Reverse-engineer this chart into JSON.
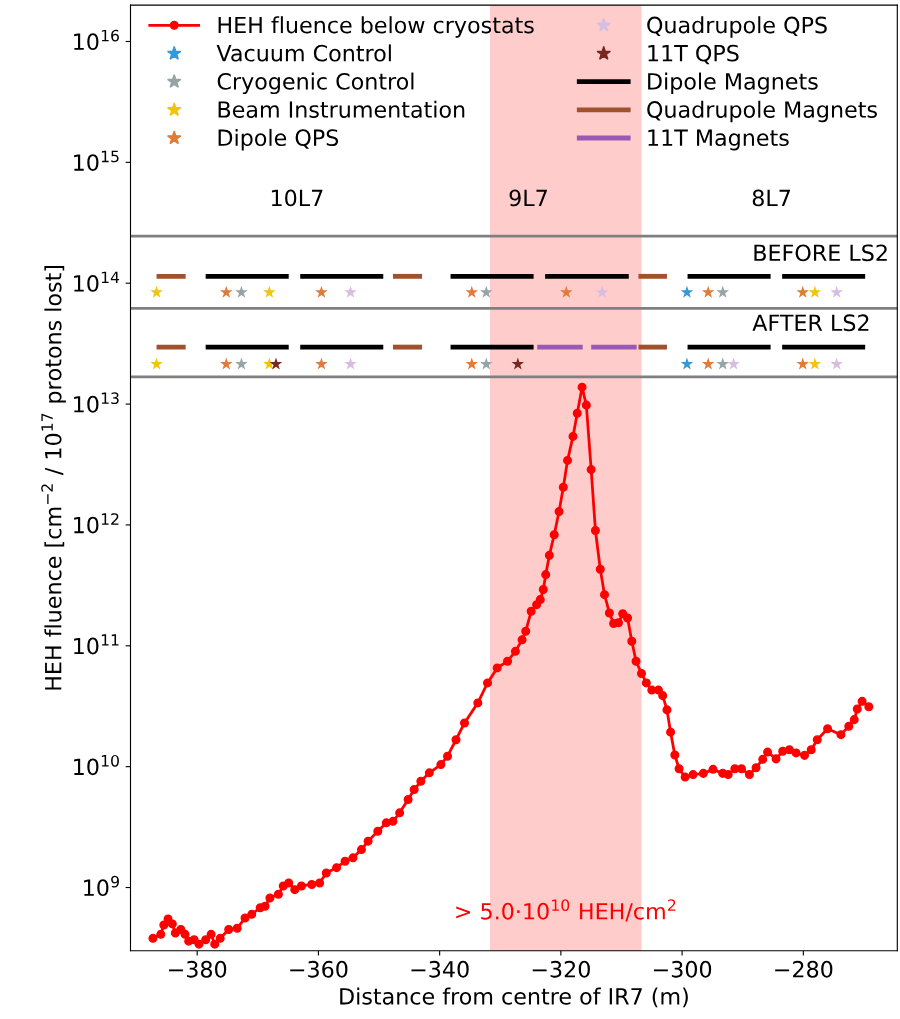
{
  "chart_data": {
    "type": "line",
    "xlabel": "Distance from centre of IR7 (m)",
    "ylabel": "HEH fluence [cm$^{−2}$ / 10$^{17}$ protons lost]",
    "log": true,
    "legend": "top",
    "xlim": [
      -391,
      -264.5
    ],
    "ylim": [
      300000000.0,
      2e+16
    ],
    "xticks": [
      {
        "value": -380,
        "label": "−380"
      },
      {
        "value": -360,
        "label": "−360"
      },
      {
        "value": -340,
        "label": "−340"
      },
      {
        "value": -320,
        "label": "−320"
      },
      {
        "value": -300,
        "label": "−300"
      },
      {
        "value": -280,
        "label": "−280"
      }
    ],
    "yticks": [
      {
        "value": 1000000000.0,
        "label": "10$^{9}$"
      },
      {
        "value": 10000000000.0,
        "label": "10$^{10}$"
      },
      {
        "value": 100000000000.0,
        "label": "10$^{11}$"
      },
      {
        "value": 1000000000000.0,
        "label": "10$^{12}$"
      },
      {
        "value": 10000000000000.0,
        "label": "10$^{13}$"
      },
      {
        "value": 100000000000000.0,
        "label": "10$^{14}$"
      },
      {
        "value": 1000000000000000.0,
        "label": "10$^{15}$"
      },
      {
        "value": 1e+16,
        "label": "10$^{16}$"
      }
    ],
    "series": [
      {
        "name": "HEH fluence below cryostats",
        "marker": "circle",
        "color": "#ff0000",
        "x": [
          -387.3,
          -386.0,
          -385.5,
          -384.8,
          -384.1,
          -383.6,
          -382.7,
          -382.0,
          -381.4,
          -380.5,
          -379.7,
          -378.6,
          -377.7,
          -377.1,
          -376.2,
          -374.8,
          -373.4,
          -372.1,
          -371.0,
          -369.6,
          -368.8,
          -368.0,
          -366.6,
          -365.8,
          -364.9,
          -363.9,
          -362.8,
          -361.1,
          -359.8,
          -358.7,
          -357.0,
          -355.6,
          -354.3,
          -352.9,
          -351.8,
          -350.2,
          -348.8,
          -347.7,
          -346.6,
          -345.2,
          -344.2,
          -343.1,
          -341.7,
          -339.8,
          -338.7,
          -337.3,
          -335.9,
          -333.7,
          -332.1,
          -330.5,
          -328.8,
          -327.5,
          -326.4,
          -325.8,
          -324.9,
          -324.0,
          -323.4,
          -322.9,
          -322.5,
          -321.9,
          -321.1,
          -320.3,
          -319.6,
          -318.9,
          -318.0,
          -317.3,
          -316.5,
          -315.8,
          -315.0,
          -314.3,
          -313.5,
          -312.8,
          -312.0,
          -311.3,
          -310.5,
          -309.8,
          -309.0,
          -308.3,
          -307.6,
          -306.7,
          -305.9,
          -305.0,
          -303.9,
          -303.2,
          -302.5,
          -301.9,
          -301.2,
          -300.5,
          -299.5,
          -298.2,
          -296.5,
          -294.9,
          -293.3,
          -292.4,
          -291.3,
          -290.2,
          -288.9,
          -287.8,
          -286.7,
          -285.9,
          -284.5,
          -283.4,
          -282.3,
          -281.2,
          -279.8,
          -278.7,
          -277.7,
          -276.0,
          -273.8,
          -272.5,
          -271.6,
          -271.1,
          -270.3,
          -269.2
        ],
        "values": [
          380000000.0,
          410000000.0,
          490000000.0,
          550000000.0,
          500000000.0,
          420000000.0,
          450000000.0,
          410000000.0,
          360000000.0,
          370000000.0,
          340000000.0,
          370000000.0,
          410000000.0,
          340000000.0,
          380000000.0,
          450000000.0,
          460000000.0,
          560000000.0,
          600000000.0,
          680000000.0,
          700000000.0,
          820000000.0,
          880000000.0,
          1030000000.0,
          1090000000.0,
          960000000.0,
          1030000000.0,
          1060000000.0,
          1090000000.0,
          1320000000.0,
          1460000000.0,
          1650000000.0,
          1760000000.0,
          2060000000.0,
          2420000000.0,
          2920000000.0,
          3430000000.0,
          3530000000.0,
          4150000000.0,
          5350000000.0,
          6470000000.0,
          7570000000.0,
          8890000000.0,
          10400000000.0,
          12200000000.0,
          16700000000.0,
          23000000000.0,
          33700000000.0,
          49300000000.0,
          65600000000.0,
          74500000000.0,
          90000000000.0,
          112000000000.0,
          132000000000.0,
          193000000000.0,
          219000000000.0,
          241000000000.0,
          292000000000.0,
          388000000000.0,
          560000000000.0,
          830000000000.0,
          1290000000000.0,
          2050000000000.0,
          3420000000000.0,
          5400000000000.0,
          8400000000000.0,
          13800000000000.0,
          9800000000000.0,
          2870000000000.0,
          900000000000.0,
          430000000000.0,
          265000000000.0,
          187000000000.0,
          153000000000.0,
          155000000000.0,
          184000000000.0,
          170000000000.0,
          109000000000.0,
          74500000000.0,
          59000000000.0,
          49300000000.0,
          43000000000.0,
          43000000000.0,
          38700000000.0,
          29500000000.0,
          19300000000.0,
          12500000000.0,
          9600000000.0,
          8200000000.0,
          8600000000.0,
          8800000000.0,
          9500000000.0,
          8800000000.0,
          8600000000.0,
          9600000000.0,
          9600000000.0,
          8600000000.0,
          9800000000.0,
          11500000000.0,
          13200000000.0,
          11600000000.0,
          13400000000.0,
          13800000000.0,
          13000000000.0,
          12400000000.0,
          13800000000.0,
          16700000000.0,
          20600000000.0,
          18400000000.0,
          21600000000.0,
          24500000000.0,
          30000000000.0,
          34700000000.0,
          31300000000.0
        ]
      },
      {
        "name": "Vacuum Control",
        "type": "scatter",
        "marker": "star",
        "color": "#3498db",
        "x": [
          -299.2,
          -299.2
        ],
        "values": [
          84000000000000.0,
          21400000000000.0
        ]
      },
      {
        "name": "Cryogenic Control",
        "type": "scatter",
        "marker": "star",
        "color": "#95a5a6",
        "x": [
          -372.7,
          -332.3,
          -293.3,
          -372.7,
          -332.3,
          -293.3
        ],
        "values": [
          84000000000000.0,
          84000000000000.0,
          84000000000000.0,
          21400000000000.0,
          21400000000000.0,
          21400000000000.0
        ]
      },
      {
        "name": "Beam Instrumentation",
        "type": "scatter",
        "marker": "star",
        "color": "#f1c40f",
        "x": [
          -386.7,
          -368.1,
          -278.1,
          -386.7,
          -368.1,
          -278.1
        ],
        "values": [
          84000000000000.0,
          84000000000000.0,
          84000000000000.0,
          21400000000000.0,
          21400000000000.0,
          21400000000000.0
        ]
      },
      {
        "name": "Dipole QPS",
        "type": "scatter",
        "marker": "star",
        "color": "#e07b39",
        "x": [
          -375.2,
          -359.5,
          -334.7,
          -319.1,
          -295.7,
          -280.1,
          -375.2,
          -359.5,
          -334.7,
          -295.7,
          -280.1
        ],
        "values": [
          84000000000000.0,
          84000000000000.0,
          84000000000000.0,
          84000000000000.0,
          84000000000000.0,
          84000000000000.0,
          21400000000000.0,
          21400000000000.0,
          21400000000000.0,
          21400000000000.0,
          21400000000000.0
        ]
      },
      {
        "name": "Quadrupole QPS",
        "type": "scatter",
        "marker": "star",
        "color": "#d7bde2",
        "x": [
          -354.7,
          -313.2,
          -274.5,
          -354.7,
          -291.5,
          -274.5
        ],
        "values": [
          84000000000000.0,
          84000000000000.0,
          84000000000000.0,
          21400000000000.0,
          21400000000000.0,
          21400000000000.0
        ]
      },
      {
        "name": "11T QPS",
        "type": "scatter",
        "marker": "star",
        "color": "#78281f",
        "x": [
          -367.0,
          -327.1
        ],
        "values": [
          21400000000000.0,
          21400000000000.0
        ]
      },
      {
        "name": "Dipole Magnets",
        "marker": "none",
        "color": "#000000",
        "x": [
          -378.2,
          -365.3
        ],
        "values": [
          114000000000000.0,
          114000000000000.0
        ]
      },
      {
        "name": "Quadrupole Magnets",
        "marker": "none",
        "color": "#a0522d",
        "x": [
          -386.3,
          -382.3
        ],
        "values": [
          114000000000000.0,
          114000000000000.0
        ]
      },
      {
        "name": "11T Magnets",
        "marker": "none",
        "color": "#9b59b6",
        "x": [
          -323.5,
          -316.8
        ],
        "values": [
          29600000000000.0,
          29600000000000.0
        ]
      },
      {
        "marker": "none",
        "color": "#9b59b6",
        "x": [
          -314.6,
          -307.9
        ],
        "values": [
          29600000000000.0,
          29600000000000.0
        ]
      },
      {
        "marker": "none",
        "color": "#000000",
        "x": [
          -362.6,
          -349.7
        ],
        "values": [
          114000000000000.0,
          114000000000000.0
        ]
      },
      {
        "marker": "none",
        "color": "#000000",
        "x": [
          -337.8,
          -324.9
        ],
        "values": [
          114000000000000.0,
          114000000000000.0
        ]
      },
      {
        "marker": "none",
        "color": "#000000",
        "x": [
          -322.2,
          -309.2
        ],
        "values": [
          114000000000000.0,
          114000000000000.0
        ]
      },
      {
        "marker": "none",
        "color": "#000000",
        "x": [
          -298.7,
          -285.8
        ],
        "values": [
          114000000000000.0,
          114000000000000.0
        ]
      },
      {
        "marker": "none",
        "color": "#000000",
        "x": [
          -283.1,
          -270.2
        ],
        "values": [
          114000000000000.0,
          114000000000000.0
        ]
      },
      {
        "marker": "none",
        "color": "#000000",
        "x": [
          -378.2,
          -365.3
        ],
        "values": [
          29600000000000.0,
          29600000000000.0
        ]
      },
      {
        "marker": "none",
        "color": "#000000",
        "x": [
          -362.6,
          -349.7
        ],
        "values": [
          29600000000000.0,
          29600000000000.0
        ]
      },
      {
        "marker": "none",
        "color": "#000000",
        "x": [
          -337.8,
          -324.9
        ],
        "values": [
          29600000000000.0,
          29600000000000.0
        ]
      },
      {
        "marker": "none",
        "color": "#000000",
        "x": [
          -298.7,
          -285.8
        ],
        "values": [
          29600000000000.0,
          29600000000000.0
        ]
      },
      {
        "marker": "none",
        "color": "#000000",
        "x": [
          -283.1,
          -270.2
        ],
        "values": [
          29600000000000.0,
          29600000000000.0
        ]
      },
      {
        "marker": "none",
        "color": "#a0522d",
        "x": [
          -347.3,
          -343.3
        ],
        "values": [
          114000000000000.0,
          114000000000000.0
        ]
      },
      {
        "marker": "none",
        "color": "#a0522d",
        "x": [
          -306.8,
          -302.9
        ],
        "values": [
          114000000000000.0,
          114000000000000.0
        ]
      },
      {
        "marker": "none",
        "color": "#a0522d",
        "x": [
          -386.3,
          -382.3
        ],
        "values": [
          29600000000000.0,
          29600000000000.0
        ]
      },
      {
        "marker": "none",
        "color": "#a0522d",
        "x": [
          -347.3,
          -343.3
        ],
        "values": [
          29600000000000.0,
          29600000000000.0
        ]
      },
      {
        "marker": "none",
        "color": "#a0522d",
        "x": [
          -306.8,
          -302.9
        ],
        "values": [
          29600000000000.0,
          29600000000000.0
        ]
      }
    ],
    "ref_lines": [
      {
        "axis": "y",
        "value": 245000000000000.0,
        "color": "#808080"
      },
      {
        "axis": "y",
        "value": 62000000000000.0,
        "color": "#808080"
      },
      {
        "axis": "y",
        "value": 16800000000000.0,
        "color": "#808080"
      }
    ],
    "bands": [
      {
        "axis": "x",
        "from": -331.7,
        "to": -306.7,
        "color": "#ff0000",
        "label": "> 5.0·10$^{10}$ HEH/cm$^{2}$"
      }
    ],
    "annotations": [
      "10L7",
      "9L7",
      "8L7",
      "BEFORE LS2",
      "AFTER LS2"
    ]
  }
}
